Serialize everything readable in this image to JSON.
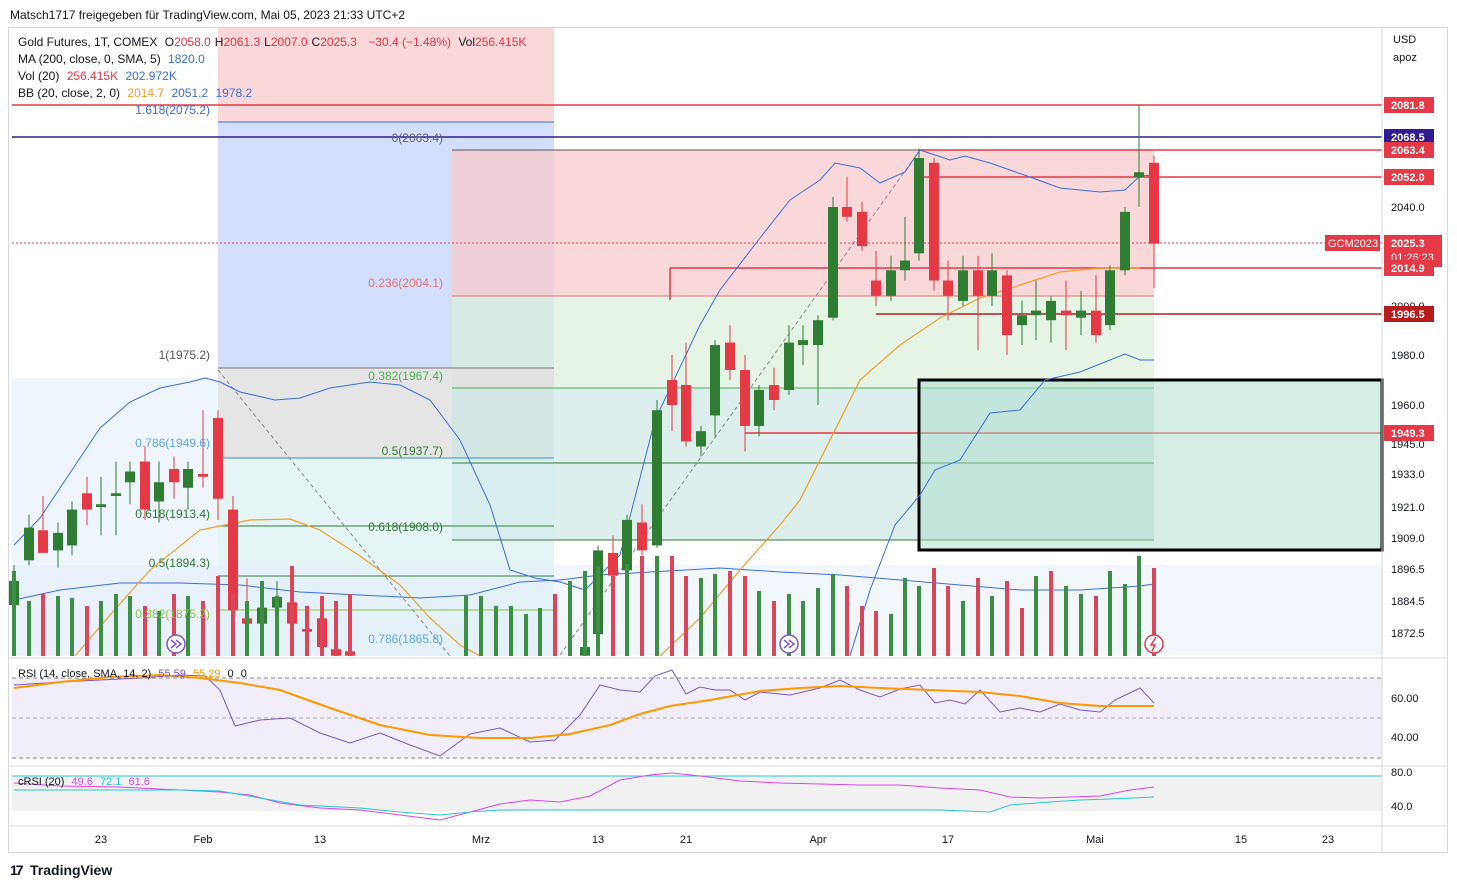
{
  "header": {
    "published_by": "Matsch1717 freigegeben für TradingView.com, Mai 05, 2023 21:33 UTC+2"
  },
  "legend": {
    "symbol": "Gold Futures, 1T, COMEX",
    "ohlc": [
      {
        "k": "O",
        "v": "2058.0"
      },
      {
        "k": "H",
        "v": "2061.3"
      },
      {
        "k": "L",
        "v": "2007.0"
      },
      {
        "k": "C",
        "v": "2025.3"
      }
    ],
    "change": "−30.4 (−1.48%)",
    "vol_label": "Vol",
    "vol_value": "256.415K",
    "ma_label": "MA (200, close, 0, SMA, 5)",
    "ma_value": "1820.0",
    "vol20_label": "Vol (20)",
    "vol20_values": [
      "256.415K",
      "202.972K"
    ],
    "bb_label": "BB (20, close, 2, 0)",
    "bb_values": [
      "2014.7",
      "2051.2",
      "1978.2"
    ]
  },
  "axis": {
    "currency": "USD",
    "scale_note": "apoz"
  },
  "panes": {
    "rsi": {
      "label": "RSI (14, close, SMA, 14, 2)",
      "values": [
        "55.59",
        "55.29",
        "0",
        "0"
      ]
    },
    "crsi": {
      "label": "cRSI (20)",
      "values": [
        "49.6",
        "72.1",
        "61.6"
      ]
    }
  },
  "footer": {
    "brand": "TradingView"
  },
  "colors": {
    "up": "#2e7d32",
    "down": "#e53945",
    "bb": "#3a6ee0",
    "ma": "#f39c2b",
    "rsi": "#7e57c2",
    "rsi_ma": "#ff9800",
    "crsi": "#d946ef",
    "crsi_2": "#26c6da"
  },
  "chart_data": {
    "type": "candlestick",
    "title": "Gold Futures, 1T, COMEX",
    "y_ticks": [
      "2040.0",
      "2000.0",
      "1980.0",
      "1960.0",
      "1945.0",
      "1933.0",
      "1921.0",
      "1909.0",
      "1896.5",
      "1884.5",
      "1872.5"
    ],
    "x_ticks": [
      "23",
      "Feb",
      "13",
      "Mrz",
      "13",
      "21",
      "Apr",
      "17",
      "Mai",
      "15",
      "23"
    ],
    "price_labels": [
      {
        "value": "2081.8",
        "color": "#e53945"
      },
      {
        "value": "2068.5",
        "color": "#311b92"
      },
      {
        "value": "2063.4",
        "color": "#e53945"
      },
      {
        "value": "2052.0",
        "color": "#e53945"
      },
      {
        "value": "2025.3",
        "countdown": "01:26:23",
        "color": "#e53945",
        "tag": "GCM2023"
      },
      {
        "value": "2014.9",
        "color": "#e53945"
      },
      {
        "value": "1996.5",
        "color": "#b71c1c"
      },
      {
        "value": "1949.3",
        "color": "#e53945"
      }
    ],
    "fib_labels": [
      "1.618(2075.2)",
      "0(2063.4)",
      "0.236(2004.1)",
      "0.382(1967.4)",
      "0.5(1937.7)",
      "0.618(1908.0)",
      "1(1975.2)",
      "0.786(1949.6)",
      "0.618(1913.4)",
      "0.5(1894.3)",
      "0.382(1875.2)",
      "0.786(1865.8)"
    ],
    "rsi_ticks": [
      "60.00",
      "40.00"
    ],
    "crsi_ticks": [
      "80.0",
      "40.0"
    ],
    "ylim": [
      1860,
      2090
    ],
    "candles": [
      {
        "x": 14,
        "o": 1883,
        "h": 1898,
        "l": 1876,
        "c": 1892
      },
      {
        "x": 29,
        "o": 1900,
        "h": 1918,
        "l": 1898,
        "c": 1913
      },
      {
        "x": 43,
        "o": 1912,
        "h": 1925,
        "l": 1903,
        "c": 1903
      },
      {
        "x": 58,
        "o": 1904,
        "h": 1915,
        "l": 1897,
        "c": 1911
      },
      {
        "x": 72,
        "o": 1906,
        "h": 1923,
        "l": 1902,
        "c": 1920
      },
      {
        "x": 87,
        "o": 1926,
        "h": 1932,
        "l": 1914,
        "c": 1920
      },
      {
        "x": 101,
        "o": 1921,
        "h": 1932,
        "l": 1910,
        "c": 1922
      },
      {
        "x": 116,
        "o": 1925,
        "h": 1938,
        "l": 1910,
        "c": 1926
      },
      {
        "x": 130,
        "o": 1930,
        "h": 1938,
        "l": 1922,
        "c": 1934
      },
      {
        "x": 145,
        "o": 1938,
        "h": 1944,
        "l": 1916,
        "c": 1920
      },
      {
        "x": 159,
        "o": 1923,
        "h": 1938,
        "l": 1915,
        "c": 1930
      },
      {
        "x": 174,
        "o": 1935,
        "h": 1940,
        "l": 1924,
        "c": 1930
      },
      {
        "x": 188,
        "o": 1928,
        "h": 1938,
        "l": 1920,
        "c": 1935
      },
      {
        "x": 203,
        "o": 1933,
        "h": 1958,
        "l": 1928,
        "c": 1932
      },
      {
        "x": 218,
        "o": 1955,
        "h": 1958,
        "l": 1916,
        "c": 1924
      },
      {
        "x": 233,
        "o": 1920,
        "h": 1925,
        "l": 1878,
        "c": 1881
      },
      {
        "x": 247,
        "o": 1878,
        "h": 1893,
        "l": 1872,
        "c": 1876
      },
      {
        "x": 262,
        "o": 1876,
        "h": 1885,
        "l": 1865,
        "c": 1882
      },
      {
        "x": 277,
        "o": 1882,
        "h": 1892,
        "l": 1870,
        "c": 1886
      },
      {
        "x": 292,
        "o": 1884,
        "h": 1892,
        "l": 1862,
        "c": 1876
      },
      {
        "x": 307,
        "o": 1874,
        "h": 1878,
        "l": 1862,
        "c": 1873
      },
      {
        "x": 322,
        "o": 1878,
        "h": 1884,
        "l": 1860,
        "c": 1866
      },
      {
        "x": 336,
        "o": 1865,
        "h": 1872,
        "l": 1860,
        "c": 1862
      },
      {
        "x": 350,
        "o": 1864,
        "h": 1870,
        "l": 1858,
        "c": 1862
      },
      {
        "x": 585,
        "o": 1862,
        "h": 1870,
        "l": 1855,
        "c": 1866
      },
      {
        "x": 598,
        "o": 1872,
        "h": 1906,
        "l": 1870,
        "c": 1904
      },
      {
        "x": 613,
        "o": 1903,
        "h": 1910,
        "l": 1888,
        "c": 1894
      },
      {
        "x": 627,
        "o": 1896,
        "h": 1918,
        "l": 1893,
        "c": 1916
      },
      {
        "x": 642,
        "o": 1915,
        "h": 1922,
        "l": 1902,
        "c": 1904
      },
      {
        "x": 657,
        "o": 1906,
        "h": 1962,
        "l": 1905,
        "c": 1958
      },
      {
        "x": 672,
        "o": 1970,
        "h": 1980,
        "l": 1950,
        "c": 1960
      },
      {
        "x": 686,
        "o": 1968,
        "h": 1985,
        "l": 1944,
        "c": 1946
      },
      {
        "x": 701,
        "o": 1944,
        "h": 1952,
        "l": 1940,
        "c": 1950
      },
      {
        "x": 715,
        "o": 1956,
        "h": 1986,
        "l": 1948,
        "c": 1984
      },
      {
        "x": 730,
        "o": 1985,
        "h": 1992,
        "l": 1970,
        "c": 1974
      },
      {
        "x": 745,
        "o": 1974,
        "h": 1980,
        "l": 1942,
        "c": 1952
      },
      {
        "x": 759,
        "o": 1952,
        "h": 1968,
        "l": 1948,
        "c": 1966
      },
      {
        "x": 774,
        "o": 1968,
        "h": 1975,
        "l": 1958,
        "c": 1962
      },
      {
        "x": 789,
        "o": 1966,
        "h": 1992,
        "l": 1964,
        "c": 1985
      },
      {
        "x": 803,
        "o": 1984,
        "h": 1992,
        "l": 1976,
        "c": 1986
      },
      {
        "x": 818,
        "o": 1984,
        "h": 1996,
        "l": 1960,
        "c": 1994
      },
      {
        "x": 833,
        "o": 1995,
        "h": 2044,
        "l": 1994,
        "c": 2040
      },
      {
        "x": 847,
        "o": 2040,
        "h": 2052,
        "l": 2034,
        "c": 2036
      },
      {
        "x": 862,
        "o": 2038,
        "h": 2042,
        "l": 2022,
        "c": 2024
      },
      {
        "x": 876,
        "o": 2010,
        "h": 2022,
        "l": 2000,
        "c": 2004
      },
      {
        "x": 891,
        "o": 2004,
        "h": 2020,
        "l": 2002,
        "c": 2014
      },
      {
        "x": 905,
        "o": 2014,
        "h": 2036,
        "l": 2010,
        "c": 2018
      },
      {
        "x": 919,
        "o": 2021,
        "h": 2064,
        "l": 2018,
        "c": 2060
      },
      {
        "x": 934,
        "o": 2058,
        "h": 2060,
        "l": 2006,
        "c": 2010
      },
      {
        "x": 948,
        "o": 2010,
        "h": 2018,
        "l": 1994,
        "c": 2004
      },
      {
        "x": 963,
        "o": 2002,
        "h": 2020,
        "l": 2000,
        "c": 2014
      },
      {
        "x": 978,
        "o": 2014,
        "h": 2020,
        "l": 1982,
        "c": 2004
      },
      {
        "x": 992,
        "o": 2004,
        "h": 2021,
        "l": 2000,
        "c": 2014
      },
      {
        "x": 1007,
        "o": 2012,
        "h": 2014,
        "l": 1980,
        "c": 1988
      },
      {
        "x": 1022,
        "o": 1992,
        "h": 2002,
        "l": 1984,
        "c": 1996
      },
      {
        "x": 1036,
        "o": 1996,
        "h": 2010,
        "l": 1986,
        "c": 1998
      },
      {
        "x": 1051,
        "o": 1994,
        "h": 2004,
        "l": 1985,
        "c": 2002
      },
      {
        "x": 1066,
        "o": 1998,
        "h": 2010,
        "l": 1982,
        "c": 1996
      },
      {
        "x": 1081,
        "o": 1995,
        "h": 2006,
        "l": 1988,
        "c": 1998
      },
      {
        "x": 1096,
        "o": 1998,
        "h": 2012,
        "l": 1985,
        "c": 1988
      },
      {
        "x": 1110,
        "o": 1992,
        "h": 2016,
        "l": 1990,
        "c": 2014
      },
      {
        "x": 1125,
        "o": 2014,
        "h": 2040,
        "l": 2012,
        "c": 2038
      },
      {
        "x": 1139,
        "o": 2052,
        "h": 2082,
        "l": 2040,
        "c": 2054
      },
      {
        "x": 1154,
        "o": 2058,
        "h": 2061,
        "l": 2007,
        "c": 2025
      }
    ],
    "volumes": [
      {
        "x": 14,
        "v": 0.85,
        "up": true
      },
      {
        "x": 29,
        "v": 0.55,
        "up": true
      },
      {
        "x": 43,
        "v": 0.62,
        "up": false
      },
      {
        "x": 58,
        "v": 0.6,
        "up": true
      },
      {
        "x": 72,
        "v": 0.58,
        "up": true
      },
      {
        "x": 87,
        "v": 0.5,
        "up": false
      },
      {
        "x": 101,
        "v": 0.55,
        "up": true
      },
      {
        "x": 116,
        "v": 0.62,
        "up": true
      },
      {
        "x": 130,
        "v": 0.6,
        "up": true
      },
      {
        "x": 145,
        "v": 0.5,
        "up": false
      },
      {
        "x": 159,
        "v": 0.45,
        "up": true
      },
      {
        "x": 174,
        "v": 0.62,
        "up": false
      },
      {
        "x": 188,
        "v": 0.6,
        "up": true
      },
      {
        "x": 203,
        "v": 0.55,
        "up": false
      },
      {
        "x": 218,
        "v": 0.8,
        "up": false
      },
      {
        "x": 233,
        "v": 0.62,
        "up": false
      },
      {
        "x": 247,
        "v": 0.55,
        "up": true
      },
      {
        "x": 262,
        "v": 0.75,
        "up": true
      },
      {
        "x": 277,
        "v": 0.6,
        "up": true
      },
      {
        "x": 292,
        "v": 0.9,
        "up": false
      },
      {
        "x": 307,
        "v": 0.5,
        "up": false
      },
      {
        "x": 322,
        "v": 0.6,
        "up": false
      },
      {
        "x": 336,
        "v": 0.55,
        "up": false
      },
      {
        "x": 350,
        "v": 0.62,
        "up": false
      },
      {
        "x": 466,
        "v": 0.6,
        "up": true
      },
      {
        "x": 481,
        "v": 0.6,
        "up": true
      },
      {
        "x": 496,
        "v": 0.5,
        "up": true
      },
      {
        "x": 511,
        "v": 0.5,
        "up": true
      },
      {
        "x": 526,
        "v": 0.42,
        "up": true
      },
      {
        "x": 540,
        "v": 0.48,
        "up": true
      },
      {
        "x": 555,
        "v": 0.62,
        "up": false
      },
      {
        "x": 570,
        "v": 0.75,
        "up": true
      },
      {
        "x": 585,
        "v": 0.85,
        "up": true
      },
      {
        "x": 598,
        "v": 0.9,
        "up": true
      },
      {
        "x": 613,
        "v": 0.8,
        "up": false
      },
      {
        "x": 627,
        "v": 0.92,
        "up": true
      },
      {
        "x": 642,
        "v": 1.0,
        "up": false
      },
      {
        "x": 657,
        "v": 1.0,
        "up": true
      },
      {
        "x": 672,
        "v": 1.0,
        "up": false
      },
      {
        "x": 686,
        "v": 0.8,
        "up": false
      },
      {
        "x": 701,
        "v": 0.78,
        "up": true
      },
      {
        "x": 715,
        "v": 0.82,
        "up": true
      },
      {
        "x": 730,
        "v": 0.85,
        "up": false
      },
      {
        "x": 745,
        "v": 0.8,
        "up": false
      },
      {
        "x": 759,
        "v": 0.65,
        "up": true
      },
      {
        "x": 774,
        "v": 0.55,
        "up": false
      },
      {
        "x": 789,
        "v": 0.62,
        "up": true
      },
      {
        "x": 803,
        "v": 0.55,
        "up": true
      },
      {
        "x": 818,
        "v": 0.68,
        "up": true
      },
      {
        "x": 833,
        "v": 0.82,
        "up": true
      },
      {
        "x": 847,
        "v": 0.7,
        "up": false
      },
      {
        "x": 862,
        "v": 0.5,
        "up": false
      },
      {
        "x": 876,
        "v": 0.45,
        "up": false
      },
      {
        "x": 891,
        "v": 0.42,
        "up": true
      },
      {
        "x": 905,
        "v": 0.78,
        "up": true
      },
      {
        "x": 919,
        "v": 0.7,
        "up": true
      },
      {
        "x": 934,
        "v": 0.88,
        "up": false
      },
      {
        "x": 948,
        "v": 0.7,
        "up": false
      },
      {
        "x": 963,
        "v": 0.55,
        "up": true
      },
      {
        "x": 978,
        "v": 0.78,
        "up": false
      },
      {
        "x": 992,
        "v": 0.6,
        "up": true
      },
      {
        "x": 1007,
        "v": 0.75,
        "up": false
      },
      {
        "x": 1022,
        "v": 0.48,
        "up": false
      },
      {
        "x": 1036,
        "v": 0.8,
        "up": true
      },
      {
        "x": 1051,
        "v": 0.85,
        "up": false
      },
      {
        "x": 1066,
        "v": 0.7,
        "up": true
      },
      {
        "x": 1081,
        "v": 0.62,
        "up": true
      },
      {
        "x": 1096,
        "v": 0.6,
        "up": false
      },
      {
        "x": 1110,
        "v": 0.85,
        "up": true
      },
      {
        "x": 1125,
        "v": 0.72,
        "up": true
      },
      {
        "x": 1139,
        "v": 1.0,
        "up": true
      },
      {
        "x": 1154,
        "v": 0.88,
        "up": false
      }
    ]
  }
}
